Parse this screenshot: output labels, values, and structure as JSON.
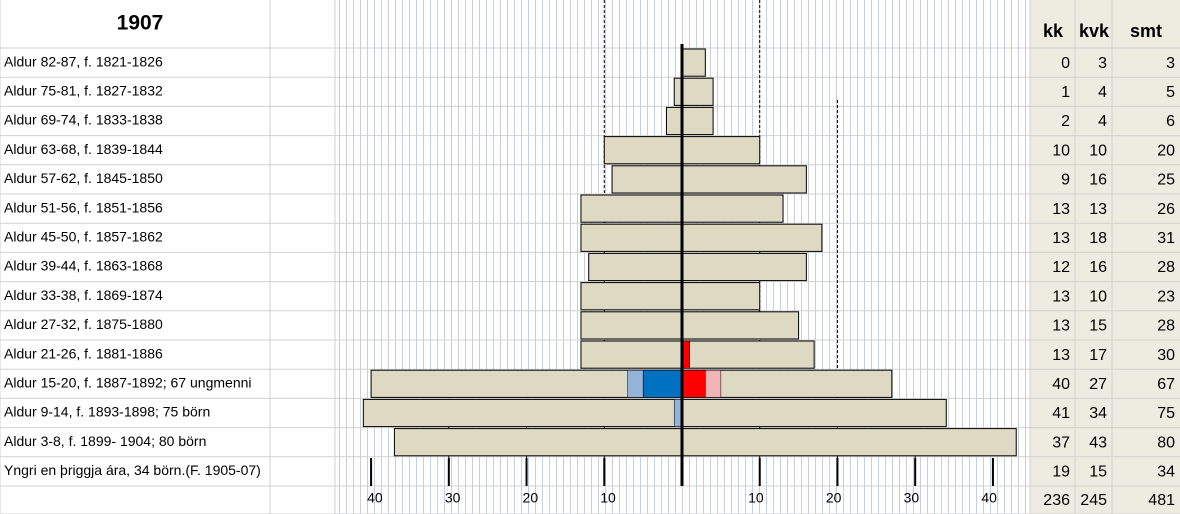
{
  "chart_data": {
    "type": "pyramid",
    "title": "1907",
    "columns": [
      "kk",
      "kvk",
      "smt"
    ],
    "rows": [
      {
        "label": "Aldur 82-87, f. 1821-1826",
        "kk": 0,
        "kvk": 3,
        "smt": 3
      },
      {
        "label": "Aldur 75-81, f. 1827-1832",
        "kk": 1,
        "kvk": 4,
        "smt": 5
      },
      {
        "label": "Aldur 69-74, f. 1833-1838",
        "kk": 2,
        "kvk": 4,
        "smt": 6
      },
      {
        "label": "Aldur 63-68, f. 1839-1844",
        "kk": 10,
        "kvk": 10,
        "smt": 20
      },
      {
        "label": "Aldur 57-62, f. 1845-1850",
        "kk": 9,
        "kvk": 16,
        "smt": 25
      },
      {
        "label": "Aldur 51-56, f. 1851-1856",
        "kk": 13,
        "kvk": 13,
        "smt": 26
      },
      {
        "label": "Aldur 45-50, f. 1857-1862",
        "kk": 13,
        "kvk": 18,
        "smt": 31
      },
      {
        "label": "Aldur 39-44, f. 1863-1868",
        "kk": 12,
        "kvk": 16,
        "smt": 28
      },
      {
        "label": "Aldur 33-38, f. 1869-1874",
        "kk": 13,
        "kvk": 10,
        "smt": 23
      },
      {
        "label": "Aldur 27-32, f. 1875-1880",
        "kk": 13,
        "kvk": 15,
        "smt": 28
      },
      {
        "label": "Aldur 21-26, f. 1881-1886",
        "kk": 13,
        "kvk": 17,
        "smt": 30
      },
      {
        "label": "Aldur 15-20, f. 1887-1892; 67 ungmenni",
        "kk": 40,
        "kvk": 27,
        "smt": 67
      },
      {
        "label": "Aldur 9-14, f. 1893-1898; 75 börn",
        "kk": 41,
        "kvk": 34,
        "smt": 75
      },
      {
        "label": "Aldur 3-8, f. 1899- 1904;  80 börn",
        "kk": 37,
        "kvk": 43,
        "smt": 80
      },
      {
        "label": "Yngri en þriggja ára, 34 börn.(F. 1905-07)",
        "kk": 19,
        "kvk": 15,
        "smt": 34,
        "bar": false
      }
    ],
    "totals": {
      "kk": 236,
      "kvk": 245,
      "smt": 481
    },
    "xlim": [
      -44,
      44
    ],
    "xticks": [
      {
        "value": -40,
        "label": "40"
      },
      {
        "value": -30,
        "label": "30"
      },
      {
        "value": -20,
        "label": "20"
      },
      {
        "value": -10,
        "label": "10"
      },
      10,
      20,
      30,
      40
    ],
    "bar_color": "#ddd9c3",
    "highlight_colors": {
      "kk": [
        "#0070c0",
        "#95b3d7"
      ],
      "kvk": [
        "#ff0000",
        "#f2b4b4"
      ]
    },
    "highlights": [
      {
        "row": 10,
        "kvk": [
          1
        ]
      },
      {
        "row": 11,
        "kk": [
          5,
          2
        ],
        "kvk": [
          3,
          2
        ]
      },
      {
        "row": 12,
        "kk": [
          0,
          1
        ]
      }
    ]
  }
}
